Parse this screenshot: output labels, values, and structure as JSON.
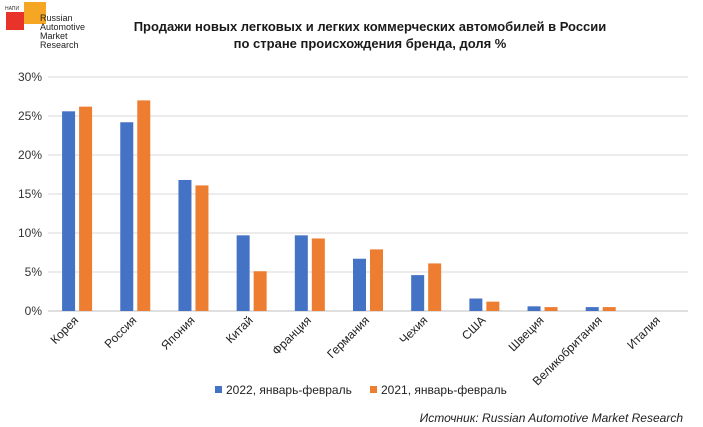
{
  "logo": {
    "small_text": "НАПИ",
    "lines": [
      "Russian",
      "Automotive",
      "Market",
      "Research"
    ]
  },
  "title": {
    "line1": "Продажи новых легковых и легких коммерческих автомобилей в России",
    "line2": "по стране происхождения бренда, доля %"
  },
  "source": "Источник: Russian Automotive Market Research",
  "colors": {
    "series_2022": "#4472c4",
    "series_2021": "#ed7d31",
    "grid": "#d9d9d9",
    "axis": "#bfbfbf"
  },
  "chart_data": {
    "type": "bar",
    "categories": [
      "Корея",
      "Россия",
      "Япония",
      "Китай",
      "Франция",
      "Германия",
      "Чехия",
      "США",
      "Швеция",
      "Великобритания",
      "Италия"
    ],
    "series": [
      {
        "name": "2022, январь-февраль",
        "values": [
          25.6,
          24.2,
          16.8,
          9.7,
          9.7,
          6.7,
          4.6,
          1.6,
          0.6,
          0.5,
          0.0
        ]
      },
      {
        "name": "2021, январь-февраль",
        "values": [
          26.2,
          27.0,
          16.1,
          5.1,
          9.3,
          7.9,
          6.1,
          1.2,
          0.5,
          0.5,
          0.0
        ]
      }
    ],
    "yticks": [
      "0%",
      "5%",
      "10%",
      "15%",
      "20%",
      "25%",
      "30%"
    ],
    "ylim": [
      0,
      30
    ],
    "grid": true,
    "legend_position": "bottom"
  }
}
